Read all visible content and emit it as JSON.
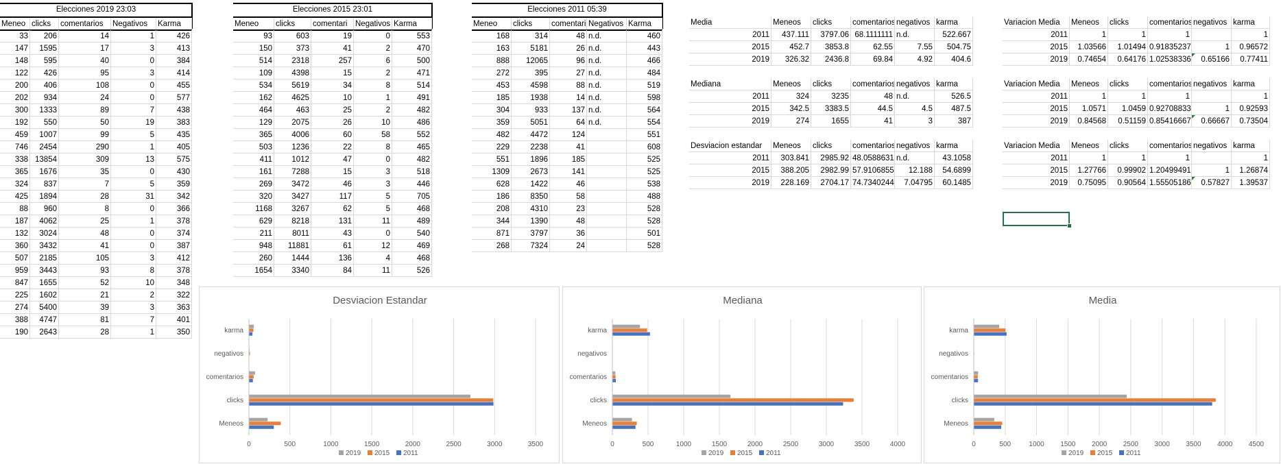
{
  "t2019": {
    "title": "Elecciones 2019 23:03",
    "headers": [
      "Meneo",
      "clicks",
      "comentarios",
      "Negativos",
      "Karma"
    ],
    "rows": [
      [
        "33",
        "206",
        "14",
        "1",
        "426"
      ],
      [
        "147",
        "1595",
        "17",
        "3",
        "413"
      ],
      [
        "148",
        "595",
        "40",
        "0",
        "384"
      ],
      [
        "122",
        "426",
        "95",
        "3",
        "414"
      ],
      [
        "200",
        "406",
        "108",
        "0",
        "455"
      ],
      [
        "202",
        "934",
        "24",
        "0",
        "577"
      ],
      [
        "300",
        "1333",
        "89",
        "7",
        "438"
      ],
      [
        "192",
        "550",
        "50",
        "19",
        "383"
      ],
      [
        "459",
        "1007",
        "99",
        "5",
        "435"
      ],
      [
        "746",
        "2454",
        "290",
        "1",
        "405"
      ],
      [
        "338",
        "13854",
        "309",
        "13",
        "575"
      ],
      [
        "365",
        "1676",
        "35",
        "0",
        "430"
      ],
      [
        "324",
        "837",
        "7",
        "5",
        "359"
      ],
      [
        "425",
        "1894",
        "28",
        "31",
        "342"
      ],
      [
        "88",
        "960",
        "8",
        "0",
        "366"
      ],
      [
        "187",
        "4062",
        "25",
        "1",
        "378"
      ],
      [
        "132",
        "3024",
        "48",
        "0",
        "374"
      ],
      [
        "360",
        "3432",
        "41",
        "0",
        "387"
      ],
      [
        "507",
        "2185",
        "105",
        "3",
        "412"
      ],
      [
        "959",
        "3443",
        "93",
        "8",
        "378"
      ],
      [
        "847",
        "1655",
        "52",
        "10",
        "348"
      ],
      [
        "225",
        "1602",
        "21",
        "2",
        "322"
      ],
      [
        "274",
        "5400",
        "39",
        "3",
        "363"
      ],
      [
        "388",
        "4747",
        "81",
        "7",
        "401"
      ],
      [
        "190",
        "2643",
        "28",
        "1",
        "350"
      ]
    ]
  },
  "t2015": {
    "title": "Elecciones 2015 23:01",
    "headers": [
      "Meneo",
      "clicks",
      "comentari",
      "Negativos",
      "Karma"
    ],
    "rows": [
      [
        "93",
        "603",
        "19",
        "0",
        "553"
      ],
      [
        "150",
        "373",
        "41",
        "2",
        "470"
      ],
      [
        "514",
        "2318",
        "257",
        "6",
        "500"
      ],
      [
        "109",
        "4398",
        "15",
        "2",
        "471"
      ],
      [
        "534",
        "5619",
        "34",
        "8",
        "514"
      ],
      [
        "162",
        "4625",
        "10",
        "1",
        "491"
      ],
      [
        "464",
        "463",
        "25",
        "2",
        "482"
      ],
      [
        "129",
        "2075",
        "26",
        "10",
        "486"
      ],
      [
        "365",
        "4006",
        "60",
        "58",
        "552"
      ],
      [
        "503",
        "1236",
        "22",
        "8",
        "465"
      ],
      [
        "411",
        "1012",
        "47",
        "0",
        "482"
      ],
      [
        "161",
        "7288",
        "15",
        "3",
        "518"
      ],
      [
        "269",
        "3472",
        "46",
        "3",
        "446"
      ],
      [
        "320",
        "3427",
        "117",
        "5",
        "705"
      ],
      [
        "1168",
        "3267",
        "62",
        "5",
        "468"
      ],
      [
        "629",
        "8218",
        "131",
        "11",
        "489"
      ],
      [
        "211",
        "8011",
        "43",
        "0",
        "540"
      ],
      [
        "948",
        "11881",
        "61",
        "12",
        "469"
      ],
      [
        "260",
        "1444",
        "136",
        "4",
        "468"
      ],
      [
        "1654",
        "3340",
        "84",
        "11",
        "526"
      ]
    ]
  },
  "t2011": {
    "title": "Elecciones 2011 05:39",
    "headers": [
      "Meneo",
      "clicks",
      "comentari",
      "Negativos",
      "Karma"
    ],
    "rows": [
      [
        "168",
        "314",
        "48",
        "n.d.",
        "460"
      ],
      [
        "163",
        "5181",
        "26",
        "n.d.",
        "443"
      ],
      [
        "888",
        "12065",
        "96",
        "n.d.",
        "466"
      ],
      [
        "272",
        "395",
        "27",
        "n.d.",
        "484"
      ],
      [
        "453",
        "4598",
        "88",
        "n.d.",
        "519"
      ],
      [
        "185",
        "1938",
        "14",
        "n.d.",
        "598"
      ],
      [
        "304",
        "933",
        "137",
        "n.d.",
        "564"
      ],
      [
        "359",
        "5051",
        "64",
        "n.d.",
        "554"
      ],
      [
        "482",
        "4472",
        "124",
        "",
        "551"
      ],
      [
        "229",
        "2238",
        "41",
        "",
        "608"
      ],
      [
        "551",
        "1896",
        "185",
        "",
        "525"
      ],
      [
        "1309",
        "2673",
        "141",
        "",
        "525"
      ],
      [
        "628",
        "1422",
        "46",
        "",
        "538"
      ],
      [
        "186",
        "8350",
        "58",
        "",
        "488"
      ],
      [
        "208",
        "4310",
        "23",
        "",
        "528"
      ],
      [
        "344",
        "1390",
        "48",
        "",
        "528"
      ],
      [
        "871",
        "3797",
        "36",
        "",
        "501"
      ],
      [
        "268",
        "7324",
        "24",
        "",
        "528"
      ]
    ]
  },
  "stats": [
    {
      "label": "Media",
      "headers": [
        "Meneos",
        "clicks",
        "comentarios",
        "negativos",
        "karma"
      ],
      "rows": [
        [
          "2011",
          "437.111",
          "3797.06",
          "68.1111111",
          "n.d.",
          "522.667"
        ],
        [
          "2015",
          "452.7",
          "3853.8",
          "62.55",
          "7.55",
          "504.75"
        ],
        [
          "2019",
          "326.32",
          "2436.8",
          "69.84",
          "4.92",
          "404.6"
        ]
      ]
    },
    {
      "label": "Mediana",
      "headers": [
        "Meneos",
        "clicks",
        "comentarios",
        "negativos",
        "karma"
      ],
      "rows": [
        [
          "2011",
          "324",
          "3235",
          "48",
          "n.d.",
          "526.5"
        ],
        [
          "2015",
          "342.5",
          "3383.5",
          "44.5",
          "4.5",
          "487.5"
        ],
        [
          "2019",
          "274",
          "1655",
          "41",
          "3",
          "387"
        ]
      ]
    },
    {
      "label": "Desviacion estandar",
      "headers": [
        "Meneos",
        "clicks",
        "comentarios",
        "negativos",
        "karma"
      ],
      "rows": [
        [
          "2011",
          "303.841",
          "2985.92",
          "48.0588631",
          "n.d.",
          "43.1058"
        ],
        [
          "2015",
          "388.205",
          "2982.99",
          "57.9106855",
          "12.188",
          "54.6899"
        ],
        [
          "2019",
          "228.169",
          "2704.17",
          "74.7340244",
          "7.04795",
          "60.1485"
        ]
      ]
    }
  ],
  "variations": [
    {
      "label": "Variacion Media",
      "headers": [
        "Meneos",
        "clicks",
        "comentarios",
        "negativos",
        "karma"
      ],
      "rows": [
        [
          "2011",
          "1",
          "1",
          "1",
          "",
          "1"
        ],
        [
          "2015",
          "1.03566",
          "1.01494",
          "0.91835237",
          "1",
          "0.96572"
        ],
        [
          "2019",
          "0.74654",
          "0.64176",
          "1.02538336",
          "0.65166",
          "0.77411"
        ]
      ]
    },
    {
      "label": "Variacion Media",
      "headers": [
        "Meneos",
        "clicks",
        "comentarios",
        "negativos",
        "karma"
      ],
      "rows": [
        [
          "2011",
          "1",
          "1",
          "1",
          "",
          "1"
        ],
        [
          "2015",
          "1.0571",
          "1.0459",
          "0.92708833",
          "1",
          "0.92593"
        ],
        [
          "2019",
          "0.84568",
          "0.51159",
          "0.85416667",
          "0.66667",
          "0.73504"
        ]
      ]
    },
    {
      "label": "Variacion Media",
      "headers": [
        "Meneos",
        "clicks",
        "comentarios",
        "negativos",
        "karma"
      ],
      "rows": [
        [
          "2011",
          "1",
          "1",
          "1",
          "",
          "1"
        ],
        [
          "2015",
          "1.27766",
          "0.99902",
          "1.20499491",
          "1",
          "1.26874"
        ],
        [
          "2019",
          "0.75095",
          "0.90564",
          "1.55505186",
          "0.57827",
          "1.39537"
        ]
      ]
    }
  ],
  "colors": {
    "s2011": "#4472c4",
    "s2015": "#ed7d31",
    "s2019": "#a5a5a5",
    "selection": "#217346"
  },
  "chart_data": [
    {
      "type": "bar",
      "title": "Desviacion Estandar",
      "categories": [
        "Meneos",
        "clicks",
        "comentarios",
        "negativos",
        "karma"
      ],
      "series": [
        {
          "name": "2011",
          "values": [
            303.841,
            2985.92,
            48.0588631,
            0,
            43.1058
          ]
        },
        {
          "name": "2015",
          "values": [
            388.205,
            2982.99,
            57.9106855,
            12.188,
            54.6899
          ]
        },
        {
          "name": "2019",
          "values": [
            228.169,
            2704.17,
            74.7340244,
            7.04795,
            60.1485
          ]
        }
      ],
      "xlim": [
        0,
        3500
      ],
      "ticks": [
        0,
        500,
        1000,
        1500,
        2000,
        2500,
        3000,
        3500
      ],
      "legend": "bottom",
      "grid": true
    },
    {
      "type": "bar",
      "title": "Mediana",
      "categories": [
        "Meneos",
        "clicks",
        "comentarios",
        "negativos",
        "karma"
      ],
      "series": [
        {
          "name": "2011",
          "values": [
            324,
            3235,
            48,
            0,
            526.5
          ]
        },
        {
          "name": "2015",
          "values": [
            342.5,
            3383.5,
            44.5,
            4.5,
            487.5
          ]
        },
        {
          "name": "2019",
          "values": [
            274,
            1655,
            41,
            3,
            387
          ]
        }
      ],
      "xlim": [
        0,
        4000
      ],
      "ticks": [
        0,
        500,
        1000,
        1500,
        2000,
        2500,
        3000,
        3500,
        4000
      ],
      "legend": "bottom",
      "grid": true
    },
    {
      "type": "bar",
      "title": "Media",
      "categories": [
        "Meneos",
        "clicks",
        "comentarios",
        "negativos",
        "karma"
      ],
      "series": [
        {
          "name": "2011",
          "values": [
            437.111,
            3797.06,
            68.1111111,
            0,
            522.667
          ]
        },
        {
          "name": "2015",
          "values": [
            452.7,
            3853.8,
            62.55,
            7.55,
            504.75
          ]
        },
        {
          "name": "2019",
          "values": [
            326.32,
            2436.8,
            69.84,
            4.92,
            404.6
          ]
        }
      ],
      "xlim": [
        0,
        4500
      ],
      "ticks": [
        0,
        500,
        1000,
        1500,
        2000,
        2500,
        3000,
        3500,
        4000,
        4500
      ],
      "legend": "bottom",
      "grid": true
    }
  ]
}
